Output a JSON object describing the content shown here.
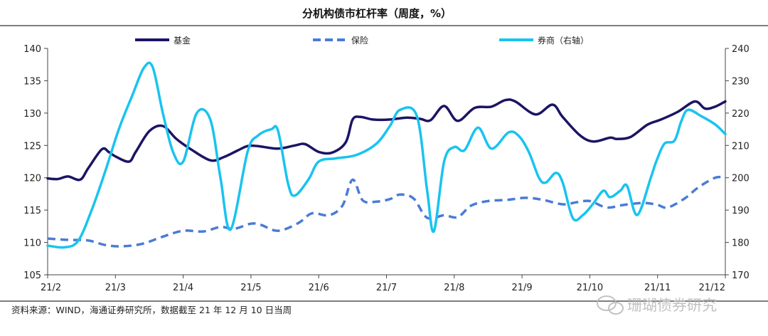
{
  "title": "分机构债市杠杆率（周度，%）",
  "source": "资料来源：WIND，海通证券研究所，数据截至 21 年 12 月 10 日当周",
  "watermark": "珊瑚债券研究",
  "chart_data": {
    "type": "line",
    "title": "分机构债市杠杆率（周度，%）",
    "x_categories": [
      "21/2",
      "21/3",
      "21/4",
      "21/5",
      "21/6",
      "21/7",
      "21/8",
      "21/9",
      "21/10",
      "21/11",
      "21/12"
    ],
    "y_left": {
      "min": 105,
      "max": 140,
      "ticks": [
        105,
        110,
        115,
        120,
        125,
        130,
        135,
        140
      ]
    },
    "y_right": {
      "min": 170,
      "max": 240,
      "ticks": [
        170,
        180,
        190,
        200,
        210,
        220,
        230,
        240
      ]
    },
    "legend_position": "top",
    "grid": false,
    "series": [
      {
        "name": "基金",
        "axis": "left",
        "color": "#1b1464",
        "dash": "solid",
        "points": [
          [
            0,
            119.9
          ],
          [
            0.15,
            119.8
          ],
          [
            0.3,
            120.2
          ],
          [
            0.48,
            119.7
          ],
          [
            0.6,
            121.5
          ],
          [
            0.8,
            124.4
          ],
          [
            0.9,
            124.0
          ],
          [
            1.0,
            123.3
          ],
          [
            1.2,
            122.5
          ],
          [
            1.3,
            124.0
          ],
          [
            1.5,
            127.2
          ],
          [
            1.7,
            128.0
          ],
          [
            1.9,
            126.0
          ],
          [
            2.1,
            124.5
          ],
          [
            2.4,
            122.7
          ],
          [
            2.6,
            123.2
          ],
          [
            2.8,
            124.2
          ],
          [
            2.95,
            124.9
          ],
          [
            3.1,
            124.9
          ],
          [
            3.4,
            124.5
          ],
          [
            3.65,
            125.0
          ],
          [
            3.8,
            125.2
          ],
          [
            4.0,
            124.0
          ],
          [
            4.2,
            123.9
          ],
          [
            4.4,
            125.5
          ],
          [
            4.5,
            129.0
          ],
          [
            4.62,
            129.4
          ],
          [
            4.8,
            129.0
          ],
          [
            5.05,
            129.0
          ],
          [
            5.3,
            129.3
          ],
          [
            5.5,
            129.1
          ],
          [
            5.65,
            128.9
          ],
          [
            5.85,
            131.1
          ],
          [
            6.05,
            128.8
          ],
          [
            6.3,
            130.8
          ],
          [
            6.55,
            131.0
          ],
          [
            6.75,
            132.0
          ],
          [
            6.9,
            131.8
          ],
          [
            7.2,
            129.8
          ],
          [
            7.45,
            131.3
          ],
          [
            7.6,
            129.4
          ],
          [
            7.85,
            126.6
          ],
          [
            8.05,
            125.6
          ],
          [
            8.3,
            126.2
          ],
          [
            8.4,
            126.0
          ],
          [
            8.6,
            126.3
          ],
          [
            8.85,
            128.2
          ],
          [
            9.05,
            129.0
          ],
          [
            9.3,
            130.2
          ],
          [
            9.55,
            131.8
          ],
          [
            9.7,
            130.7
          ],
          [
            9.85,
            131.0
          ],
          [
            10.0,
            131.8
          ]
        ]
      },
      {
        "name": "保险",
        "axis": "left",
        "color": "#4a7bd6",
        "dash": "dashed",
        "points": [
          [
            0,
            110.6
          ],
          [
            0.3,
            110.4
          ],
          [
            0.6,
            110.3
          ],
          [
            0.85,
            109.6
          ],
          [
            1.1,
            109.4
          ],
          [
            1.4,
            109.8
          ],
          [
            1.7,
            110.9
          ],
          [
            2.0,
            111.8
          ],
          [
            2.3,
            111.7
          ],
          [
            2.55,
            112.4
          ],
          [
            2.75,
            112.1
          ],
          [
            3.0,
            112.9
          ],
          [
            3.15,
            112.7
          ],
          [
            3.4,
            111.8
          ],
          [
            3.7,
            113.0
          ],
          [
            3.9,
            114.5
          ],
          [
            4.15,
            114.2
          ],
          [
            4.35,
            115.7
          ],
          [
            4.5,
            119.7
          ],
          [
            4.65,
            116.5
          ],
          [
            4.85,
            116.3
          ],
          [
            5.05,
            116.7
          ],
          [
            5.2,
            117.4
          ],
          [
            5.4,
            116.8
          ],
          [
            5.6,
            113.8
          ],
          [
            5.85,
            114.2
          ],
          [
            6.05,
            113.9
          ],
          [
            6.25,
            115.7
          ],
          [
            6.5,
            116.4
          ],
          [
            6.8,
            116.6
          ],
          [
            7.05,
            116.9
          ],
          [
            7.3,
            116.6
          ],
          [
            7.6,
            115.9
          ],
          [
            7.8,
            116.2
          ],
          [
            8.0,
            116.4
          ],
          [
            8.25,
            115.4
          ],
          [
            8.5,
            115.8
          ],
          [
            8.8,
            116.1
          ],
          [
            9.0,
            115.8
          ],
          [
            9.15,
            115.4
          ],
          [
            9.4,
            116.8
          ],
          [
            9.6,
            118.5
          ],
          [
            9.85,
            120.0
          ],
          [
            10.0,
            120.0
          ]
        ]
      },
      {
        "name": "券商（右轴）",
        "axis": "right",
        "color": "#19c3f0",
        "dash": "solid",
        "points": [
          [
            0,
            179.0
          ],
          [
            0.25,
            178.5
          ],
          [
            0.45,
            180.5
          ],
          [
            0.65,
            190.0
          ],
          [
            0.85,
            202.0
          ],
          [
            1.05,
            215.0
          ],
          [
            1.25,
            225.5
          ],
          [
            1.42,
            234.0
          ],
          [
            1.55,
            234.2
          ],
          [
            1.7,
            220.0
          ],
          [
            1.85,
            208.0
          ],
          [
            2.0,
            205.0
          ],
          [
            2.2,
            220.0
          ],
          [
            2.4,
            218.0
          ],
          [
            2.55,
            200.0
          ],
          [
            2.7,
            184.0
          ],
          [
            2.95,
            208.0
          ],
          [
            3.1,
            213.0
          ],
          [
            3.3,
            215.0
          ],
          [
            3.4,
            214.5
          ],
          [
            3.55,
            198.0
          ],
          [
            3.65,
            194.5
          ],
          [
            3.85,
            199.5
          ],
          [
            4.0,
            205.0
          ],
          [
            4.25,
            206.0
          ],
          [
            4.55,
            207.0
          ],
          [
            4.85,
            210.5
          ],
          [
            5.05,
            216.0
          ],
          [
            5.2,
            221.0
          ],
          [
            5.45,
            219.0
          ],
          [
            5.6,
            196.0
          ],
          [
            5.7,
            183.5
          ],
          [
            5.85,
            205.0
          ],
          [
            6.0,
            209.5
          ],
          [
            6.15,
            208.5
          ],
          [
            6.35,
            215.5
          ],
          [
            6.55,
            209.0
          ],
          [
            6.8,
            214.0
          ],
          [
            6.95,
            213.0
          ],
          [
            7.1,
            208.0
          ],
          [
            7.25,
            200.0
          ],
          [
            7.35,
            198.5
          ],
          [
            7.5,
            201.5
          ],
          [
            7.6,
            198.5
          ],
          [
            7.75,
            187.5
          ],
          [
            7.9,
            188.5
          ],
          [
            8.05,
            192.0
          ],
          [
            8.2,
            196.0
          ],
          [
            8.3,
            194.0
          ],
          [
            8.45,
            196.0
          ],
          [
            8.55,
            197.5
          ],
          [
            8.7,
            188.5
          ],
          [
            8.9,
            200.0
          ],
          [
            8.98,
            205.0
          ],
          [
            9.1,
            210.5
          ],
          [
            9.25,
            211.5
          ],
          [
            9.35,
            217.5
          ],
          [
            9.45,
            221.0
          ],
          [
            9.65,
            219.0
          ],
          [
            9.85,
            216.5
          ],
          [
            10.0,
            213.5
          ]
        ]
      }
    ]
  }
}
